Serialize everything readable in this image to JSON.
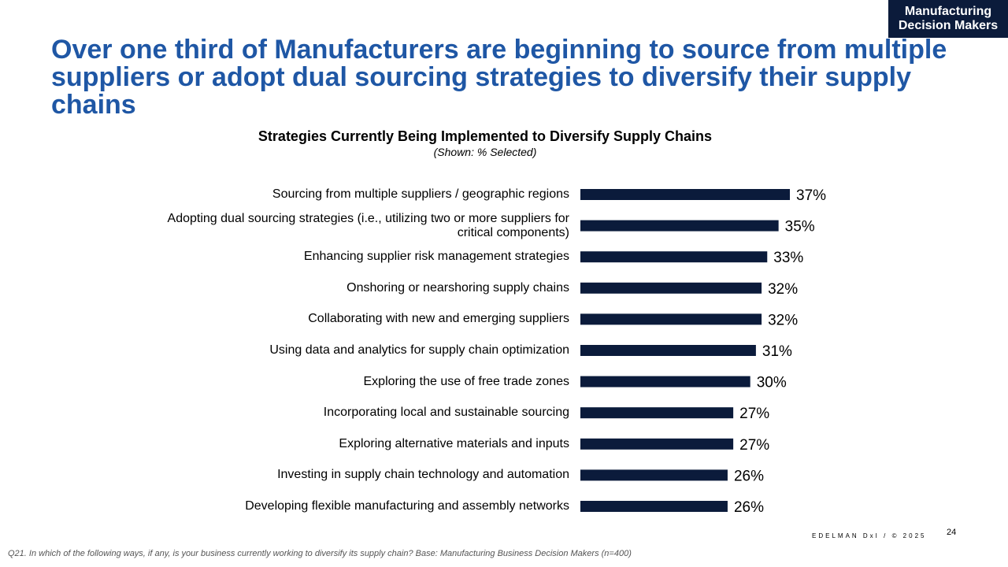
{
  "badge": {
    "line1": "Manufacturing",
    "line2": "Decision Makers"
  },
  "headline": "Over one third of Manufacturers are beginning to source from multiple suppliers or adopt dual sourcing strategies to diversify their supply chains",
  "chart_data": {
    "type": "bar",
    "orientation": "horizontal",
    "title": "Strategies Currently Being Implemented to Diversify Supply Chains",
    "subtitle": "(Shown: % Selected)",
    "categories": [
      "Sourcing from multiple suppliers / geographic regions",
      "Adopting dual sourcing strategies (i.e., utilizing two or more suppliers for critical components)",
      "Enhancing supplier risk management strategies",
      "Onshoring or nearshoring supply chains",
      "Collaborating with new and emerging suppliers",
      "Using data and analytics for supply chain optimization",
      "Exploring the use of free trade zones",
      "Incorporating local and sustainable sourcing",
      "Exploring alternative materials and inputs",
      "Investing in supply chain technology and automation",
      "Developing flexible manufacturing and assembly networks"
    ],
    "values": [
      37,
      35,
      33,
      32,
      32,
      31,
      30,
      27,
      27,
      26,
      26
    ],
    "value_labels": [
      "37%",
      "35%",
      "33%",
      "32%",
      "32%",
      "31%",
      "30%",
      "27%",
      "27%",
      "26%",
      "26%"
    ],
    "unit": "%",
    "bar_color": "#0b1b3b",
    "grid": false,
    "legend": "none"
  },
  "footer": {
    "brand": "EDELMAN DxI / © 2025",
    "page_number": "24",
    "footnote": "Q21. In which of the following ways, if any, is your business currently working to diversify its supply chain? Base: Manufacturing Business Decision Makers  (n=400)"
  },
  "colors": {
    "headline": "#1f57a5",
    "badge_bg": "#0b1b3b",
    "bar": "#0b1b3b"
  }
}
